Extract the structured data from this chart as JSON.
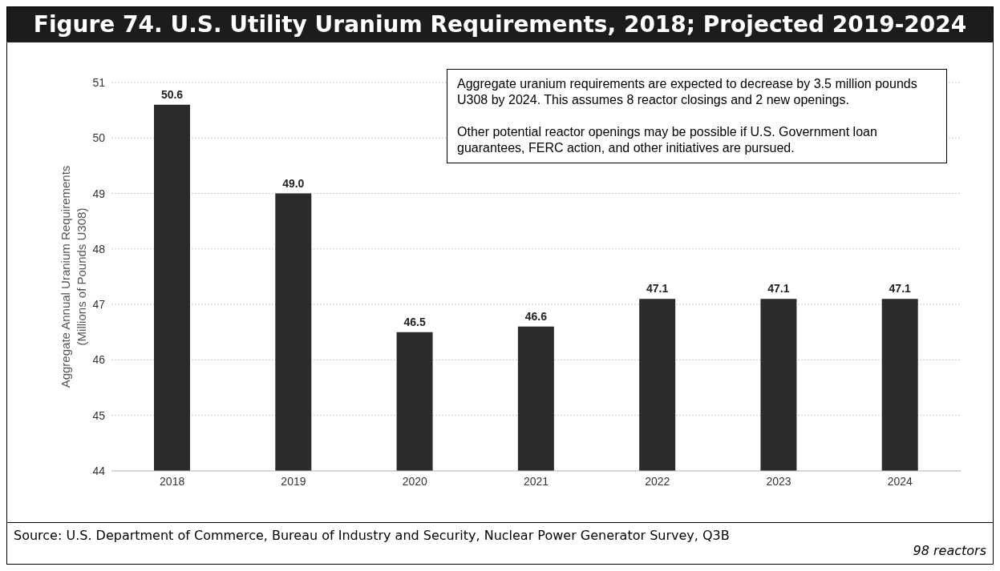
{
  "chart_data": {
    "type": "bar",
    "title": "Figure 74.  U.S. Utility Uranium Requirements, 2018; Projected 2019-2024",
    "ylabel": "Aggregate Annual Uranium Requirements\n(Millions of Pounds U308)",
    "categories": [
      "2018",
      "2019",
      "2020",
      "2021",
      "2022",
      "2023",
      "2024"
    ],
    "values": [
      50.6,
      49.0,
      46.5,
      46.6,
      47.1,
      47.1,
      47.1
    ],
    "value_labels": [
      "50.6",
      "49.0",
      "46.5",
      "46.6",
      "47.1",
      "47.1",
      "47.1"
    ],
    "color": "#2b2b2b",
    "ylim": [
      44,
      51
    ],
    "yticks": [
      44,
      45,
      46,
      47,
      48,
      49,
      50,
      51
    ],
    "grid": "y",
    "annotations": [
      "Aggregate uranium requirements are expected to decrease by 3.5 million pounds U308 by 2024.  This assumes 8 reactor closings and 2 new openings.",
      "Other potential reactor openings may be possible if U.S. Government loan guarantees, FERC action, and other initiatives are pursued.",
      "Source: U.S. Department of Commerce, Bureau of Industry and Security, Nuclear Power Generator Survey, Q3B",
      "98 reactors"
    ]
  }
}
